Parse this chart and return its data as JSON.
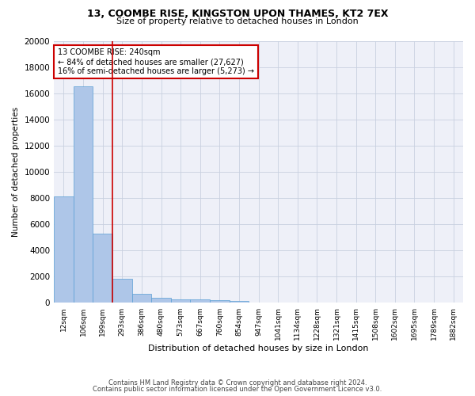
{
  "title_line1": "13, COOMBE RISE, KINGSTON UPON THAMES, KT2 7EX",
  "title_line2": "Size of property relative to detached houses in London",
  "xlabel": "Distribution of detached houses by size in London",
  "ylabel": "Number of detached properties",
  "categories": [
    "12sqm",
    "106sqm",
    "199sqm",
    "293sqm",
    "386sqm",
    "480sqm",
    "573sqm",
    "667sqm",
    "760sqm",
    "854sqm",
    "947sqm",
    "1041sqm",
    "1134sqm",
    "1228sqm",
    "1321sqm",
    "1415sqm",
    "1508sqm",
    "1602sqm",
    "1695sqm",
    "1789sqm",
    "1882sqm"
  ],
  "values": [
    8100,
    16500,
    5300,
    1850,
    700,
    380,
    290,
    240,
    200,
    160,
    0,
    0,
    0,
    0,
    0,
    0,
    0,
    0,
    0,
    0,
    0
  ],
  "bar_color": "#aec6e8",
  "bar_edge_color": "#5a9fd4",
  "vline_color": "#cc0000",
  "annotation_text": "13 COOMBE RISE: 240sqm\n← 84% of detached houses are smaller (27,627)\n16% of semi-detached houses are larger (5,273) →",
  "annotation_box_color": "#ffffff",
  "annotation_edge_color": "#cc0000",
  "ylim": [
    0,
    20000
  ],
  "yticks": [
    0,
    2000,
    4000,
    6000,
    8000,
    10000,
    12000,
    14000,
    16000,
    18000,
    20000
  ],
  "grid_color": "#c8d0e0",
  "bg_color": "#eef0f8",
  "footer_line1": "Contains HM Land Registry data © Crown copyright and database right 2024.",
  "footer_line2": "Contains public sector information licensed under the Open Government Licence v3.0."
}
